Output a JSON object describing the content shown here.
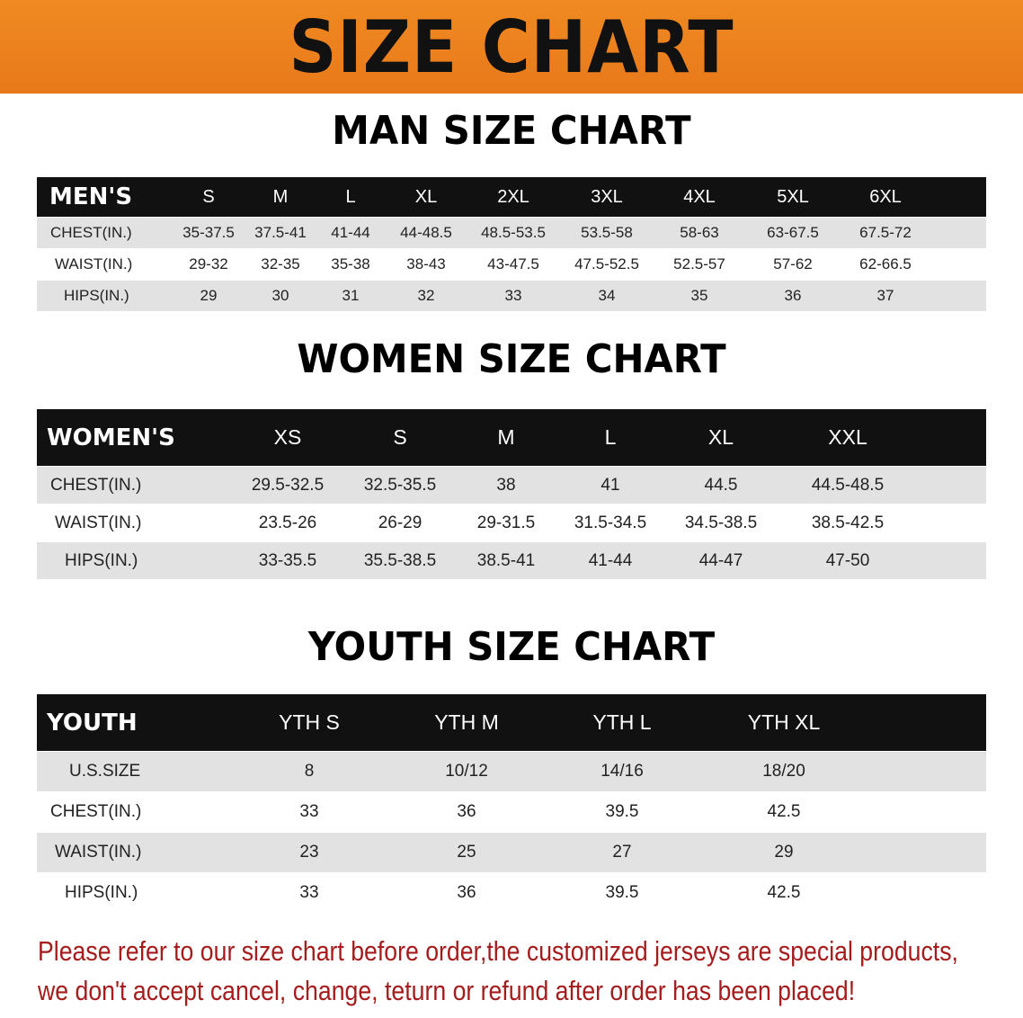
{
  "banner": {
    "title": "SIZE CHART",
    "color": "#ee8420"
  },
  "men": {
    "title": "MAN SIZE CHART",
    "header": "MEN'S",
    "sizes": [
      "S",
      "M",
      "L",
      "XL",
      "2XL",
      "3XL",
      "4XL",
      "5XL",
      "6XL"
    ],
    "rows": [
      {
        "label": "CHEST(IN.)",
        "values": [
          "35-37.5",
          "37.5-41",
          "41-44",
          "44-48.5",
          "48.5-53.5",
          "53.5-58",
          "58-63",
          "63-67.5",
          "67.5-72"
        ]
      },
      {
        "label": "WAIST(IN.)",
        "values": [
          "29-32",
          "32-35",
          "35-38",
          "38-43",
          "43-47.5",
          "47.5-52.5",
          "52.5-57",
          "57-62",
          "62-66.5"
        ]
      },
      {
        "label": "HIPS(IN.)",
        "values": [
          "29",
          "30",
          "31",
          "32",
          "33",
          "34",
          "35",
          "36",
          "37"
        ]
      }
    ]
  },
  "women": {
    "title": "WOMEN SIZE CHART",
    "header": "WOMEN'S",
    "sizes": [
      "XS",
      "S",
      "M",
      "L",
      "XL",
      "XXL"
    ],
    "rows": [
      {
        "label": "CHEST(IN.)",
        "values": [
          "29.5-32.5",
          "32.5-35.5",
          "38",
          "41",
          "44.5",
          "44.5-48.5"
        ]
      },
      {
        "label": "WAIST(IN.)",
        "values": [
          "23.5-26",
          "26-29",
          "29-31.5",
          "31.5-34.5",
          "34.5-38.5",
          "38.5-42.5"
        ]
      },
      {
        "label": "HIPS(IN.)",
        "values": [
          "33-35.5",
          "35.5-38.5",
          "38.5-41",
          "41-44",
          "44-47",
          "47-50"
        ]
      }
    ]
  },
  "youth": {
    "title": "YOUTH SIZE CHART",
    "header": "YOUTH",
    "sizes": [
      "YTH S",
      "YTH M",
      "YTH L",
      "YTH XL"
    ],
    "rows": [
      {
        "label": "U.S.SIZE",
        "values": [
          "8",
          "10/12",
          "14/16",
          "18/20"
        ]
      },
      {
        "label": "CHEST(IN.)",
        "values": [
          "33",
          "36",
          "39.5",
          "42.5"
        ]
      },
      {
        "label": "WAIST(IN.)",
        "values": [
          "23",
          "25",
          "27",
          "29"
        ]
      },
      {
        "label": "HIPS(IN.)",
        "values": [
          "33",
          "36",
          "39.5",
          "42.5"
        ]
      }
    ]
  },
  "notice": {
    "line1": "Please refer to our size chart before order,the customized jerseys are special products,",
    "line2": "we don't accept cancel, change, teturn or refund after order has been placed!",
    "color": "#a61c1c"
  }
}
